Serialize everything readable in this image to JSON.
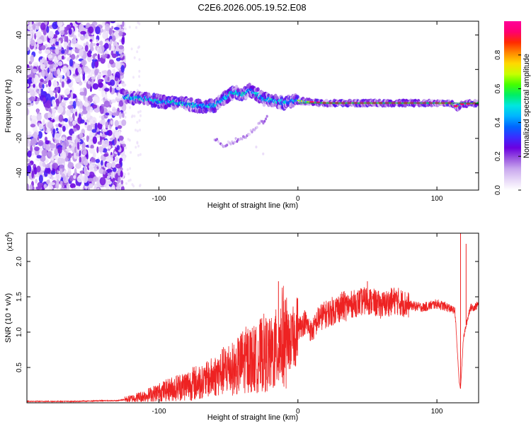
{
  "figure_title": "C2E6.2026.005.19.52.E08",
  "chart_data": [
    {
      "type": "heatmap",
      "title": "C2E6.2026.005.19.52.E08",
      "xlabel": "Height of straight line (km)",
      "ylabel": "Frequency (Hz)",
      "xlim": [
        -195,
        130
      ],
      "ylim": [
        -50,
        48
      ],
      "xticks": [
        -100,
        0,
        100
      ],
      "xtick_labels": [
        "-100",
        "0",
        "100"
      ],
      "yticks": [
        -40,
        -20,
        0,
        20,
        40
      ],
      "ytick_labels": [
        "-40",
        "-20",
        "0",
        "20",
        "40"
      ],
      "colorbar": {
        "label": "Normalized spectral amplitude",
        "range": [
          0,
          1
        ],
        "ticks": [
          0.0,
          0.2,
          0.4,
          0.6,
          0.8
        ],
        "tick_labels": [
          "0.0",
          "0.2",
          "0.4",
          "0.6",
          "0.8"
        ],
        "stops": [
          "#ffffff",
          "#e6d6f7",
          "#c9a8ee",
          "#9a55e0",
          "#6b00e0",
          "#3a2cff",
          "#0066ff",
          "#00b4ff",
          "#00e6e0",
          "#00ee66",
          "#44ff00",
          "#c8ff00",
          "#ffd800",
          "#ff8800",
          "#ff2a00",
          "#ff0070",
          "#ff0099"
        ]
      },
      "features": {
        "noise_region_x": [
          -195,
          -125
        ],
        "signal_ridge": [
          [
            -125,
            4
          ],
          [
            -110,
            3
          ],
          [
            -100,
            1.5
          ],
          [
            -90,
            1
          ],
          [
            -80,
            0
          ],
          [
            -70,
            -1.5
          ],
          [
            -60,
            -1
          ],
          [
            -55,
            2
          ],
          [
            -50,
            5
          ],
          [
            -45,
            7
          ],
          [
            -40,
            5
          ],
          [
            -35,
            8
          ],
          [
            -30,
            6
          ],
          [
            -25,
            3
          ],
          [
            -20,
            2
          ],
          [
            -15,
            1.5
          ],
          [
            -10,
            0.5
          ],
          [
            0,
            2
          ],
          [
            5,
            1.5
          ],
          [
            10,
            1
          ],
          [
            20,
            0.5
          ],
          [
            40,
            0.5
          ],
          [
            60,
            0.5
          ],
          [
            80,
            0.5
          ],
          [
            100,
            0.5
          ],
          [
            110,
            0.5
          ],
          [
            115,
            -2
          ],
          [
            118,
            0
          ],
          [
            130,
            0.5
          ]
        ],
        "lower_branch": [
          [
            -60,
            -20
          ],
          [
            -55,
            -24
          ],
          [
            -48,
            -22
          ],
          [
            -40,
            -20
          ],
          [
            -35,
            -17
          ],
          [
            -28,
            -12
          ],
          [
            -22,
            -8
          ]
        ]
      }
    },
    {
      "type": "line",
      "xlabel": "Height of straight line (km)",
      "ylabel": "SNR (10 * v/v)",
      "scale_label": "(x10",
      "scale_exponent": "4",
      "xlim": [
        -195,
        130
      ],
      "ylim": [
        0,
        2.4
      ],
      "xticks": [
        -100,
        0,
        100
      ],
      "xtick_labels": [
        "-100",
        "0",
        "100"
      ],
      "yticks": [
        0.5,
        1.0,
        1.5,
        2.0
      ],
      "ytick_labels": [
        "0.5",
        "1.0",
        "1.5",
        "2.0"
      ],
      "series": [
        {
          "name": "SNR",
          "color": "#ee2222",
          "x": [
            -195,
            -180,
            -160,
            -140,
            -130,
            -120,
            -110,
            -100,
            -90,
            -80,
            -70,
            -60,
            -55,
            -50,
            -45,
            -40,
            -35,
            -30,
            -25,
            -20,
            -15,
            -12,
            -10,
            -8,
            -5,
            0,
            5,
            10,
            15,
            20,
            25,
            30,
            40,
            50,
            60,
            70,
            80,
            90,
            100,
            108,
            113,
            116,
            117,
            119,
            121,
            124,
            127,
            130
          ],
          "values": [
            0.02,
            0.02,
            0.02,
            0.03,
            0.03,
            0.06,
            0.1,
            0.15,
            0.2,
            0.25,
            0.3,
            0.4,
            0.45,
            0.52,
            0.5,
            0.62,
            0.66,
            0.64,
            0.75,
            0.7,
            0.8,
            0.95,
            1.0,
            0.9,
            0.85,
            1.05,
            1.15,
            1.0,
            1.2,
            1.25,
            1.3,
            1.35,
            1.4,
            1.45,
            1.38,
            1.45,
            1.38,
            1.35,
            1.4,
            1.35,
            1.3,
            0.3,
            0.2,
            0.9,
            1.1,
            1.35,
            1.35,
            1.4
          ]
        }
      ],
      "annotations": [
        {
          "x": -14,
          "y": 1.72
        },
        {
          "x": 50,
          "y": 1.72
        },
        {
          "x": 117,
          "y": 2.4
        },
        {
          "x": 121,
          "y": 2.25
        }
      ]
    }
  ]
}
